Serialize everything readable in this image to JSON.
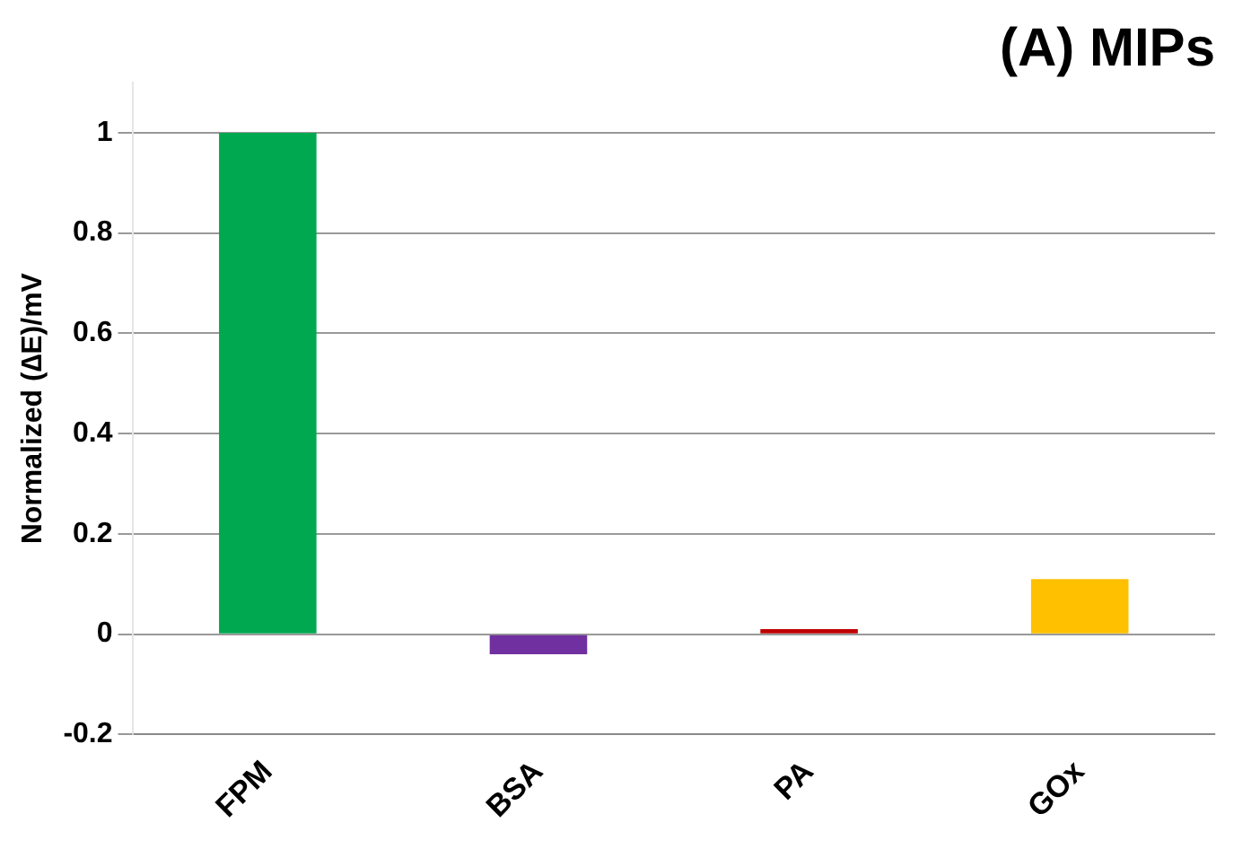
{
  "chart_data": {
    "type": "bar",
    "title": "(A) MIPs",
    "ylabel": "Normalized (∆E)/mV",
    "categories": [
      "FPM",
      "BSA",
      "PA",
      "GOx"
    ],
    "values": [
      1,
      -0.04,
      0.01,
      0.11
    ],
    "colors": [
      "#00a84f",
      "#7030a0",
      "#c00000",
      "#ffc000"
    ],
    "ylim": [
      -0.2,
      1.1
    ],
    "yticks": [
      -0.2,
      0,
      0.2,
      0.4,
      0.6,
      0.8,
      1
    ],
    "grid": "y",
    "legend": false
  }
}
